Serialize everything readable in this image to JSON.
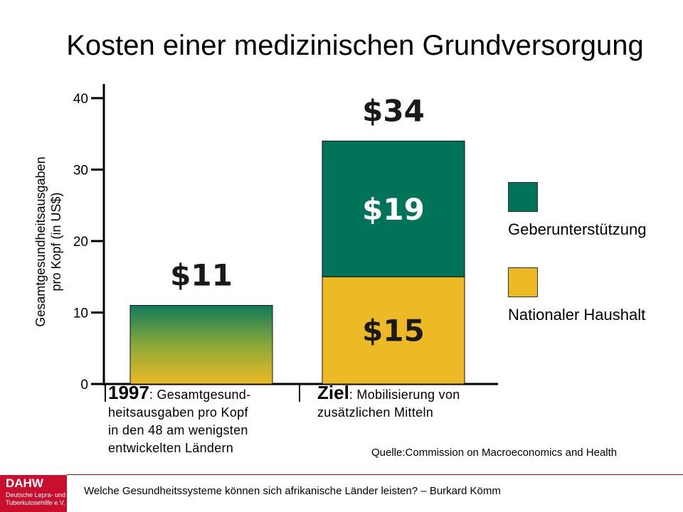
{
  "title": "Kosten einer medizinischen Grundversorgung",
  "chart_data": {
    "type": "bar",
    "ylabel_line1": "Gesamtgesundheitsausgaben",
    "ylabel_line2": "pro Kopf (in US$)",
    "ylim": [
      0,
      40
    ],
    "yticks": [
      "0",
      "10",
      "20",
      "30",
      "40"
    ],
    "categories": [
      "1997",
      "Ziel"
    ],
    "bars": [
      {
        "category": "1997",
        "total": 11,
        "total_label": "$11",
        "segments": []
      },
      {
        "category": "Ziel",
        "total": 34,
        "total_label": "$34",
        "segments": [
          {
            "series": "Nationaler Haushalt",
            "value": 15,
            "label": "$15"
          },
          {
            "series": "Geberunterstützung",
            "value": 19,
            "label": "$19"
          }
        ]
      }
    ],
    "legend": [
      {
        "name": "Geberunterstützung",
        "color": "#007358"
      },
      {
        "name": "Nationaler Haushalt",
        "color": "#EDBA25"
      }
    ],
    "legend_position": "right",
    "grid": false
  },
  "captions": {
    "left": {
      "bold": "1997",
      "text_line1": ": Gesamtgesund-",
      "text_line2": "heitsausgaben pro Kopf",
      "text_line3": "in den 48 am wenigsten",
      "text_line4": "entwickelten Ländern"
    },
    "right": {
      "bold": "Ziel",
      "text_line1": ": Mobilisierung von",
      "text_line2": "zusätzlichen Mitteln"
    }
  },
  "source": "Quelle:Commission on Macroeconomics and Health",
  "footer": "Welche Gesundheitssysteme können sich afrikanische Länder leisten? –  Burkard Kömm",
  "logo": {
    "name": "DAHW",
    "line1": "Deutsche Lepra- und",
    "line2": "Tuberkulosehilfe e.V.",
    "color": "#C8102E"
  }
}
